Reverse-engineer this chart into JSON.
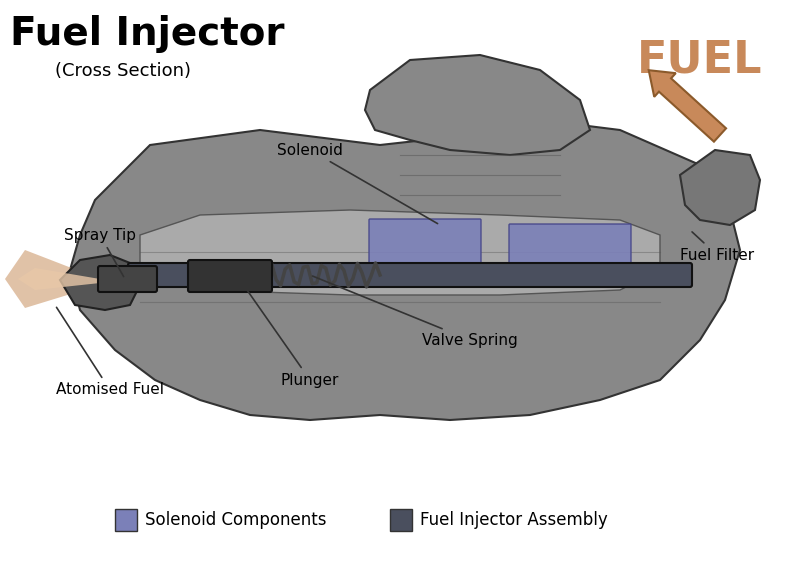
{
  "title": "Fuel Injector",
  "subtitle": "(Cross Section)",
  "fuel_label": "FUEL",
  "fuel_color": "#C8895A",
  "background_color": "#FFFFFF",
  "body_color": "#9A9A9A",
  "body_dark": "#6A6A6A",
  "body_light": "#BBBBBB",
  "solenoid_color": "#7B80B8",
  "assembly_color": "#4A4F5E",
  "black_color": "#222222",
  "spring_color": "#555555",
  "atomised_color_light": "#E8C8A8",
  "atomised_color_dark": "#C8895A",
  "labels": {
    "solenoid": "Solenoid",
    "fuel_filter": "Fuel Filter",
    "valve_spring": "Valve Spring",
    "plunger": "Plunger",
    "spray_tip": "Spray Tip",
    "atomised_fuel": "Atomised Fuel"
  },
  "legend": [
    {
      "label": "Solenoid Components",
      "color": "#7B80B8"
    },
    {
      "label": "Fuel Injector Assembly",
      "color": "#4A4F5E"
    }
  ]
}
